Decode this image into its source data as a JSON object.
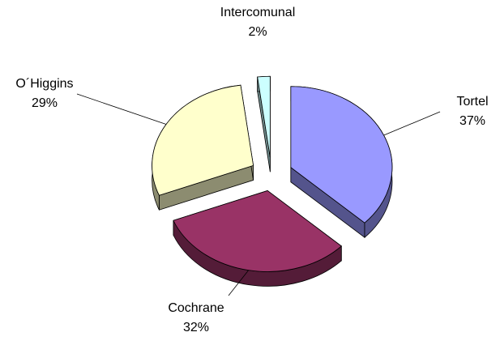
{
  "chart_data": {
    "type": "pie",
    "categories": [
      "Tortel",
      "Cochrane",
      "O´Higgins",
      "Intercomunal"
    ],
    "values": [
      37,
      32,
      29,
      2
    ],
    "value_labels": [
      "37%",
      "32%",
      "29%",
      "2%"
    ],
    "colors": [
      "#9999ff",
      "#993366",
      "#ffffcc",
      "#ccffff"
    ]
  }
}
